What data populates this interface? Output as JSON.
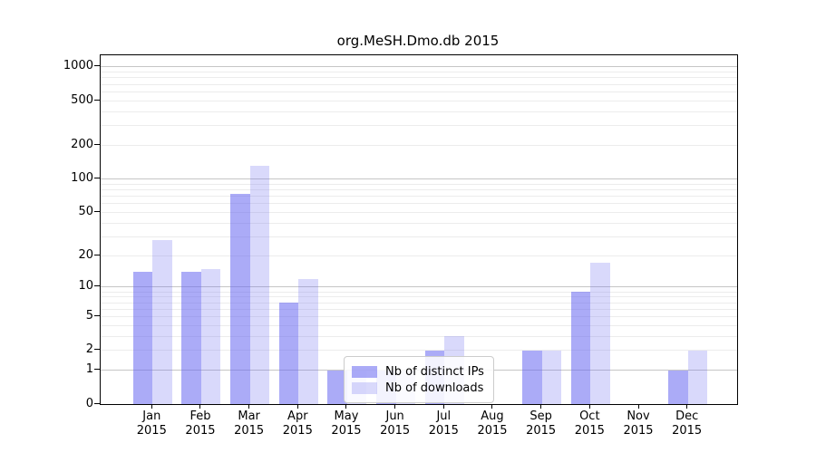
{
  "title": "org.MeSH.Dmo.db 2015",
  "legend": {
    "items": [
      {
        "label": "Nb of distinct IPs",
        "color": "#6666f0",
        "opacity": 0.55
      },
      {
        "label": "Nb of downloads",
        "color": "#6666f0",
        "opacity": 0.25
      }
    ]
  },
  "axes": {
    "y_ticks": [
      {
        "value": 0,
        "label": "0"
      },
      {
        "value": 1,
        "label": "1"
      },
      {
        "value": 2,
        "label": "2"
      },
      {
        "value": 5,
        "label": "5"
      },
      {
        "value": 10,
        "label": "10"
      },
      {
        "value": 20,
        "label": "20"
      },
      {
        "value": 50,
        "label": "50"
      },
      {
        "value": 100,
        "label": "100"
      },
      {
        "value": 200,
        "label": "200"
      },
      {
        "value": 500,
        "label": "500"
      },
      {
        "value": 1000,
        "label": "1000"
      }
    ],
    "minor_grid_values": [
      2,
      3,
      4,
      5,
      6,
      7,
      8,
      9,
      20,
      30,
      40,
      50,
      60,
      70,
      80,
      90,
      200,
      300,
      400,
      500,
      600,
      700,
      800,
      900
    ],
    "major_grid_values": [
      1,
      10,
      100,
      1000
    ]
  },
  "chart_data": {
    "type": "bar",
    "title": "org.MeSH.Dmo.db 2015",
    "categories": [
      "Jan\n2015",
      "Feb\n2015",
      "Mar\n2015",
      "Apr\n2015",
      "May\n2015",
      "Jun\n2015",
      "Jul\n2015",
      "Aug\n2015",
      "Sep\n2015",
      "Oct\n2015",
      "Nov\n2015",
      "Dec\n2015"
    ],
    "series": [
      {
        "name": "Nb of distinct IPs",
        "values": [
          14,
          14,
          73,
          7,
          1,
          1,
          2,
          0,
          2,
          9,
          0,
          1
        ]
      },
      {
        "name": "Nb of downloads",
        "values": [
          28,
          15,
          130,
          12,
          1,
          1,
          3,
          0,
          2,
          17,
          0,
          2
        ]
      }
    ],
    "y_scale": "log10(1+v)",
    "ylim": [
      0,
      1280
    ],
    "y_tick_labels": [
      "0",
      "1",
      "2",
      "5",
      "10",
      "20",
      "50",
      "100",
      "200",
      "500",
      "1000"
    ],
    "legend_position": "lower center-left inside plot",
    "grid": "horizontal major+minor",
    "bar_colors": {
      "distinct_ips": "rgba(102,102,240,0.55)",
      "downloads": "rgba(102,102,240,0.25)"
    }
  }
}
